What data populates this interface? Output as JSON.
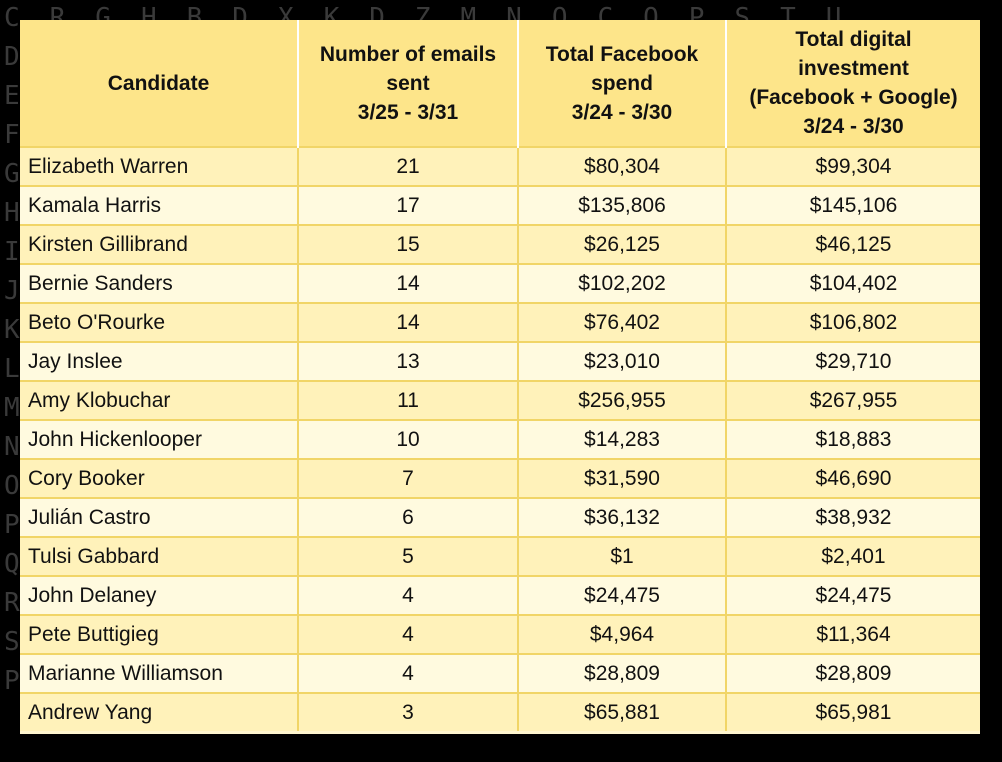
{
  "background_letters": [
    "CRGHBDXKDZMNOCOPSTU",
    "DEFGHIJKLMNOPQRSTUF",
    "EFGHIJKLMNOPQRSTUVW",
    "FGHYLEANOPQTWFOTUVG",
    "GHIZMFBOPQRUWXYGJKL",
    "HIJNGCPORSVWXYZJKLM",
    "IJKBOIDQRSTWXYZAKLN",
    "JKLCPJFRSTUXYZABLMO",
    "KLMDOKFSTUVYZABCMNP",
    "LMNERLGTUVWZABCDNOQ",
    "MNOFSMTUVWXABCDEOPR",
    "NOPGTNUVWXYBCDEFPQS",
    "OPQHUOVWXYZCDEFGQRT",
    "PQRIVPWXYZADEFGHRSU",
    "QRSJWQXYZABEFGHISTV",
    "RSTKXRNZABFGHIJTUWX",
    "STULYSOABCGDGHIJUVY",
    "PETUPQLXRNZABPDCFGIS"
  ],
  "table": {
    "headers": [
      {
        "lines": [
          "Candidate"
        ]
      },
      {
        "lines": [
          "Number of emails",
          "sent",
          "3/25 - 3/31"
        ]
      },
      {
        "lines": [
          "Total Facebook",
          "spend",
          "3/24 - 3/30"
        ]
      },
      {
        "lines": [
          "Total digital",
          "investment",
          "(Facebook + Google)",
          "3/24 - 3/30"
        ]
      }
    ],
    "rows": [
      {
        "candidate": "Elizabeth Warren",
        "emails": "21",
        "facebook": "$80,304",
        "digital": "$99,304"
      },
      {
        "candidate": "Kamala Harris",
        "emails": "17",
        "facebook": "$135,806",
        "digital": "$145,106"
      },
      {
        "candidate": "Kirsten Gillibrand",
        "emails": "15",
        "facebook": "$26,125",
        "digital": "$46,125"
      },
      {
        "candidate": "Bernie Sanders",
        "emails": "14",
        "facebook": "$102,202",
        "digital": "$104,402"
      },
      {
        "candidate": "Beto O'Rourke",
        "emails": "14",
        "facebook": "$76,402",
        "digital": "$106,802"
      },
      {
        "candidate": "Jay Inslee",
        "emails": "13",
        "facebook": "$23,010",
        "digital": "$29,710"
      },
      {
        "candidate": "Amy Klobuchar",
        "emails": "11",
        "facebook": "$256,955",
        "digital": "$267,955"
      },
      {
        "candidate": "John Hickenlooper",
        "emails": "10",
        "facebook": "$14,283",
        "digital": "$18,883"
      },
      {
        "candidate": "Cory Booker",
        "emails": "7",
        "facebook": "$31,590",
        "digital": "$46,690"
      },
      {
        "candidate": "Julián Castro",
        "emails": "6",
        "facebook": "$36,132",
        "digital": "$38,932"
      },
      {
        "candidate": "Tulsi Gabbard",
        "emails": "5",
        "facebook": "$1",
        "digital": "$2,401"
      },
      {
        "candidate": "John Delaney",
        "emails": "4",
        "facebook": "$24,475",
        "digital": "$24,475"
      },
      {
        "candidate": "Pete Buttigieg",
        "emails": "4",
        "facebook": "$4,964",
        "digital": "$11,364"
      },
      {
        "candidate": "Marianne Williamson",
        "emails": "4",
        "facebook": "$28,809",
        "digital": "$28,809"
      },
      {
        "candidate": "Andrew Yang",
        "emails": "3",
        "facebook": "$65,881",
        "digital": "$65,981"
      }
    ]
  },
  "colors": {
    "background": "#000000",
    "header_fill": "#fde58a",
    "row_fill": "#fff1b9",
    "border": "#f1d567"
  }
}
